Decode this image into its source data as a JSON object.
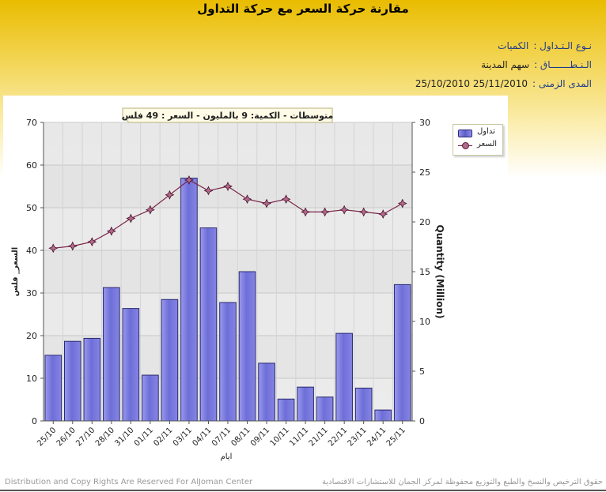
{
  "page": {
    "title": "مقارنة حركة السعر مع حركة التداول",
    "info": [
      {
        "label": "نـوع الـتـداول :",
        "value": "الكميات"
      },
      {
        "label": "الـنـطـــــــاق :",
        "value": "سهم   المدينة"
      },
      {
        "label": "المدى الزمنى :",
        "value": "25/11/2010 25/10/2010"
      }
    ],
    "footer_left": "Distribution and Copy Rights Are Reserved For AlJoman Center",
    "footer_right": "حقوق الترخيص والنسخ والطبع والتوزيع محفوظة لمركز الجمان للاستشارات الاقتصادية"
  },
  "colors": {
    "bar": "#7b7be0",
    "bar_edge": "#2a2a6e",
    "line": "#7a2448",
    "marker": "#b06a8c",
    "header_gold": "#e9bc00"
  },
  "chart_data": {
    "type": "bar",
    "annotation": "متوسطات - الكمية: 9 بالمليون  - السعر : 49 فلس",
    "categories": [
      "25/10",
      "26/10",
      "27/10",
      "28/10",
      "31/10",
      "01/11",
      "02/11",
      "03/11",
      "04/11",
      "07/11",
      "08/11",
      "09/11",
      "10/11",
      "11/11",
      "21/11",
      "22/11",
      "23/11",
      "24/11",
      "25/11"
    ],
    "series": [
      {
        "name": "تداول",
        "type": "bar",
        "axis": "right",
        "values": [
          6.6,
          8.0,
          8.3,
          13.4,
          11.3,
          4.6,
          12.2,
          24.4,
          19.4,
          11.9,
          15.0,
          5.8,
          2.2,
          3.4,
          2.4,
          8.8,
          3.3,
          1.1,
          13.7
        ]
      },
      {
        "name": "السعر",
        "type": "line",
        "axis": "left",
        "values": [
          40.5,
          41.0,
          42.0,
          44.5,
          47.5,
          49.5,
          53.0,
          56.5,
          54.0,
          55.0,
          52.0,
          51.0,
          52.0,
          49.0,
          49.0,
          49.5,
          49.0,
          48.5,
          51.0
        ]
      }
    ],
    "y_left": {
      "label": "السعر_ فلس",
      "lim": [
        0,
        70
      ],
      "ticks": [
        0,
        10,
        20,
        30,
        40,
        50,
        60,
        70
      ]
    },
    "y_right": {
      "label": "Quantity (Million)",
      "lim": [
        0,
        30
      ],
      "ticks": [
        0,
        5,
        10,
        15,
        20,
        25,
        30
      ]
    },
    "xlabel": "ايام",
    "grid": true,
    "legend_position": "top-right"
  }
}
